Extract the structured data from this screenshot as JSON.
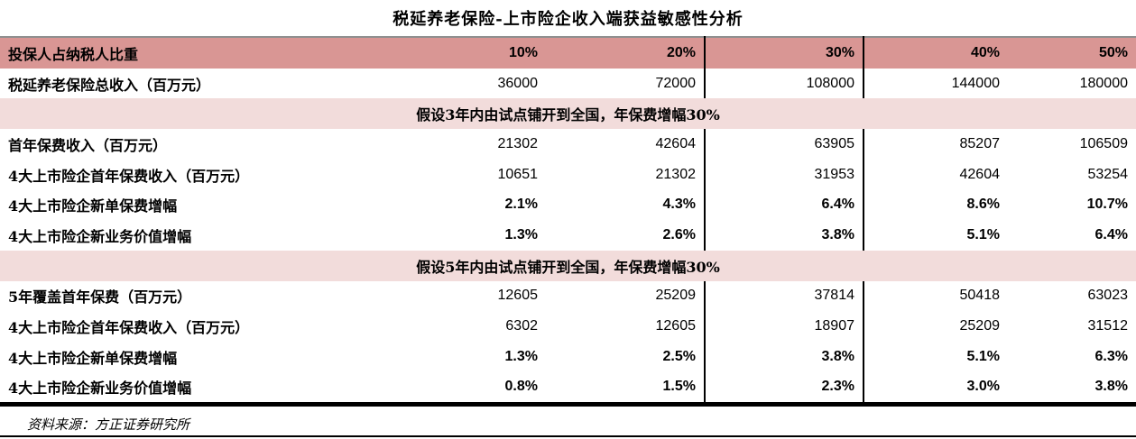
{
  "title": "税延养老保险-上市险企收入端获益敏感性分析",
  "colors": {
    "header_bg": "#D99694",
    "section_bg": "#F2DCDB",
    "rule": "#000000",
    "top_border": "#8f8f8f"
  },
  "table": {
    "header": {
      "label": "投保人占纳税人比重",
      "values": [
        "10%",
        "20%",
        "30%",
        "40%",
        "50%"
      ]
    },
    "rows": [
      {
        "type": "data",
        "label": "税延养老保险总收入（百万元）",
        "values": [
          "36000",
          "72000",
          "108000",
          "144000",
          "180000"
        ]
      },
      {
        "type": "section",
        "label": "假设3年内由试点铺开到全国，年保费增幅30%"
      },
      {
        "type": "data",
        "label": "首年保费收入（百万元）",
        "values": [
          "21302",
          "42604",
          "63905",
          "85207",
          "106509"
        ]
      },
      {
        "type": "data",
        "label": "4大上市险企首年保费收入（百万元）",
        "values": [
          "10651",
          "21302",
          "31953",
          "42604",
          "53254"
        ]
      },
      {
        "type": "data",
        "label": "4大上市险企新单保费增幅",
        "values": [
          "2.1%",
          "4.3%",
          "6.4%",
          "8.6%",
          "10.7%"
        ]
      },
      {
        "type": "data",
        "label": "4大上市险企新业务价值增幅",
        "values": [
          "1.3%",
          "2.6%",
          "3.8%",
          "5.1%",
          "6.4%"
        ]
      },
      {
        "type": "section",
        "label": "假设5年内由试点铺开到全国，年保费增幅30%"
      },
      {
        "type": "data",
        "label": "5年覆盖首年保费（百万元）",
        "values": [
          "12605",
          "25209",
          "37814",
          "50418",
          "63023"
        ]
      },
      {
        "type": "data",
        "label": "4大上市险企首年保费收入（百万元）",
        "values": [
          "6302",
          "12605",
          "18907",
          "25209",
          "31512"
        ]
      },
      {
        "type": "data",
        "label": "4大上市险企新单保费增幅",
        "values": [
          "1.3%",
          "2.5%",
          "3.8%",
          "5.1%",
          "6.3%"
        ]
      },
      {
        "type": "data",
        "label": "4大上市险企新业务价值增幅",
        "values": [
          "0.8%",
          "1.5%",
          "2.3%",
          "3.0%",
          "3.8%"
        ]
      }
    ]
  },
  "source": "资料来源：方正证券研究所"
}
